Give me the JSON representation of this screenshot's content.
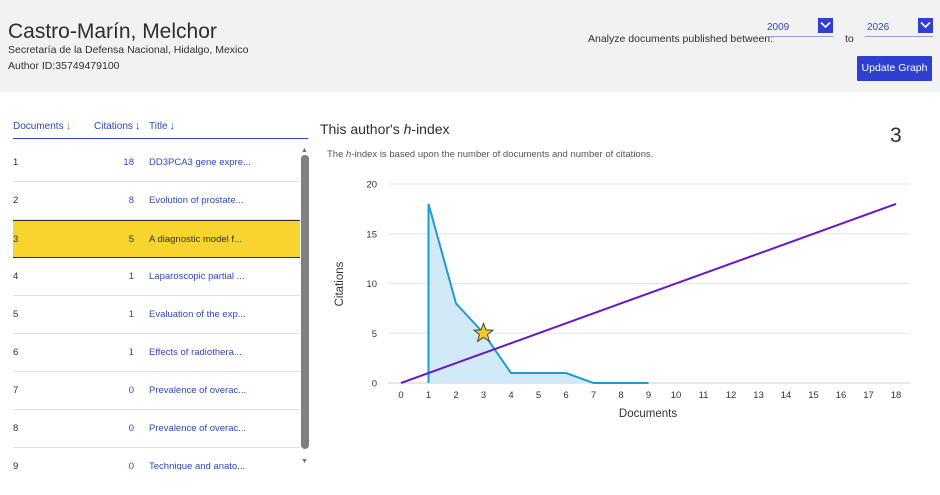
{
  "author": {
    "name": "Castro-Marín, Melchor",
    "affiliation": "Secretaría de la Defensa Nacional, Hidalgo, Mexico",
    "author_id": "Author ID:35749479100"
  },
  "controls": {
    "analyze_label": "Analyze documents published between:",
    "from_year": "2009",
    "to_label": "to",
    "to_year": "2026",
    "update_button": "Update Graph"
  },
  "table": {
    "headers": {
      "documents": "Documents",
      "citations": "Citations",
      "title": "Title"
    },
    "rows": [
      {
        "num": "1",
        "citations": "18",
        "title": "DD3PCA3 gene expre...",
        "highlight": false
      },
      {
        "num": "2",
        "citations": "8",
        "title": "Evolution of prostate...",
        "highlight": false
      },
      {
        "num": "3",
        "citations": "5",
        "title": "A diagnostic model f...",
        "highlight": true
      },
      {
        "num": "4",
        "citations": "1",
        "title": "Laparoscopic partial ...",
        "highlight": false
      },
      {
        "num": "5",
        "citations": "1",
        "title": "Evaluation of the exp...",
        "highlight": false
      },
      {
        "num": "6",
        "citations": "1",
        "title": "Effects of radiothera...",
        "highlight": false
      },
      {
        "num": "7",
        "citations": "0",
        "title": "Prevalence of overac...",
        "highlight": false
      },
      {
        "num": "8",
        "citations": "0",
        "title": "Prevalence of overac...",
        "highlight": false
      },
      {
        "num": "9",
        "citations": "0",
        "title": "Technique and anato...",
        "highlight": false
      }
    ]
  },
  "hindex": {
    "title_prefix": "This author's ",
    "title_h": "h",
    "title_suffix": "-index",
    "value": "3",
    "desc_prefix": "The ",
    "desc_h": "h",
    "desc_suffix": "-index is based upon the number of documents and number of citations."
  },
  "colors": {
    "accent": "#2e3fd1",
    "link": "#2e49b5",
    "highlight": "#f8d42f",
    "citation_line": "#1f9ccf",
    "citation_fill": "#cde8f6",
    "hindex_line": "#6a16c7",
    "star": "#f5c929"
  },
  "chart_data": {
    "type": "area",
    "xlabel": "Documents",
    "ylabel": "Citations",
    "xlim": [
      0,
      18
    ],
    "ylim": [
      0,
      20
    ],
    "x_ticks": [
      0,
      1,
      2,
      3,
      4,
      5,
      6,
      7,
      8,
      9,
      10,
      11,
      12,
      13,
      14,
      15,
      16,
      17,
      18
    ],
    "y_ticks": [
      0,
      5,
      10,
      15,
      20
    ],
    "grid": "horizontal",
    "series": [
      {
        "x": [
          1,
          2,
          3,
          4,
          5,
          6,
          7,
          8,
          9
        ],
        "values": [
          18,
          8,
          5,
          1,
          1,
          1,
          0,
          0,
          0
        ]
      },
      {
        "x": [
          0,
          18
        ],
        "values": [
          0,
          18
        ]
      }
    ],
    "marker": {
      "shape": "star",
      "x": 3,
      "y": 5
    }
  }
}
